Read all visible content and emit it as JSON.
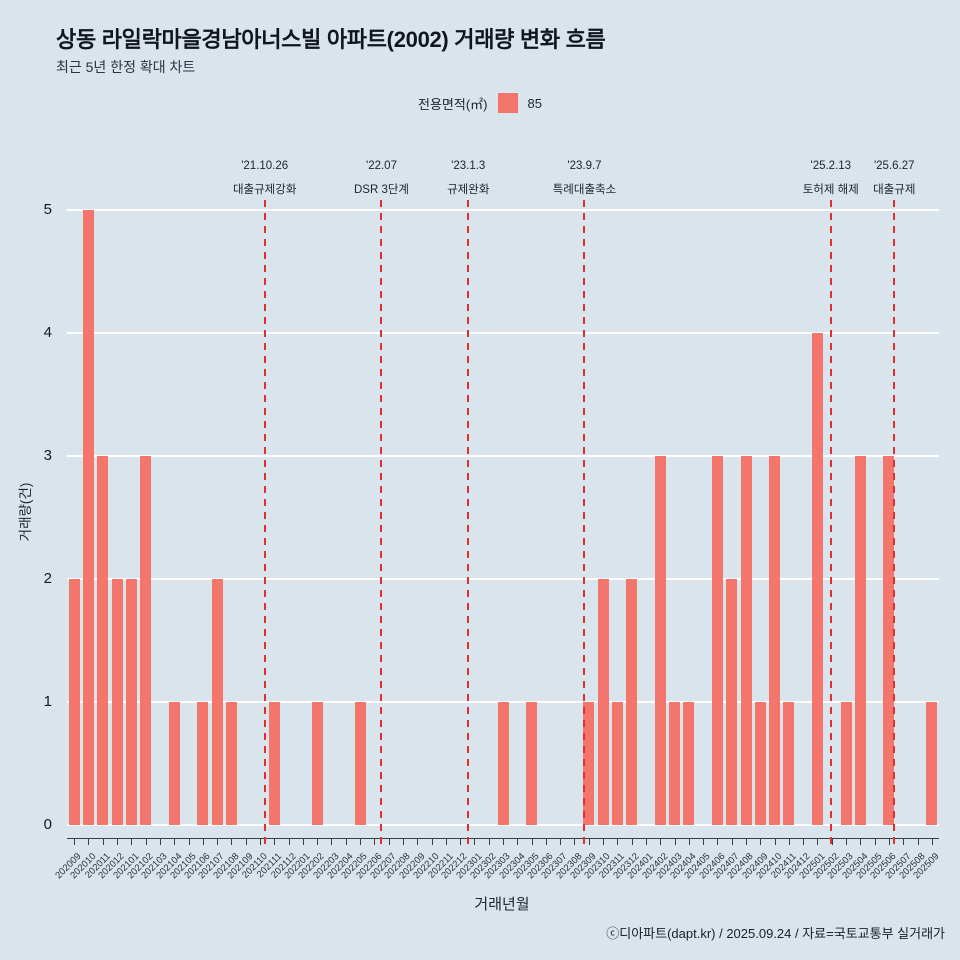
{
  "page": {
    "title": "상동 라일락마을경남아너스빌 아파트(2002) 거래량 변화 흐름",
    "subtitle": "최근 5년 한정 확대 차트",
    "footer": "ⓒ디아파트(dapt.kr) / 2025.09.24 / 자료=국토교통부 실거래가"
  },
  "legend": {
    "label": "전용면적(㎡)",
    "value": "85",
    "swatch_color": "#f4756c"
  },
  "chart_data": {
    "type": "bar",
    "title": "상동 라일락마을경남아너스빌 아파트(2002) 거래량 변화 흐름",
    "subtitle": "최근 5년 한정 확대 차트",
    "xlabel": "거래년월",
    "ylabel": "거래량(건)",
    "ylim": [
      0,
      5
    ],
    "yticks": [
      0,
      1,
      2,
      3,
      4,
      5
    ],
    "grid": "horizontal-white",
    "legend_position": "top-center",
    "bar_color": "#f4756c",
    "background_color": "#d9e4ec",
    "event_line_color": "#e12f2f",
    "series_name": "85",
    "categories": [
      "202009",
      "202010",
      "202011",
      "202012",
      "202101",
      "202102",
      "202103",
      "202104",
      "202105",
      "202106",
      "202107",
      "202108",
      "202109",
      "202110",
      "202111",
      "202112",
      "202201",
      "202202",
      "202203",
      "202204",
      "202205",
      "202206",
      "202207",
      "202208",
      "202209",
      "202210",
      "202211",
      "202212",
      "202301",
      "202302",
      "202303",
      "202304",
      "202305",
      "202306",
      "202307",
      "202308",
      "202309",
      "202310",
      "202311",
      "202312",
      "202401",
      "202402",
      "202403",
      "202404",
      "202405",
      "202406",
      "202407",
      "202408",
      "202409",
      "202410",
      "202411",
      "202412",
      "202501",
      "202502",
      "202503",
      "202504",
      "202505",
      "202506",
      "202507",
      "202508",
      "202509"
    ],
    "values": [
      2,
      5,
      3,
      2,
      2,
      3,
      0,
      1,
      0,
      1,
      2,
      1,
      0,
      0,
      1,
      0,
      0,
      1,
      0,
      0,
      1,
      0,
      0,
      0,
      0,
      0,
      0,
      0,
      0,
      0,
      1,
      0,
      1,
      0,
      0,
      0,
      1,
      2,
      1,
      2,
      0,
      3,
      1,
      1,
      0,
      3,
      2,
      3,
      1,
      3,
      1,
      0,
      4,
      0,
      1,
      3,
      0,
      3,
      0,
      0,
      1
    ],
    "events": [
      {
        "date": "'21.10.26",
        "label": "대출규제강화",
        "x_index": 13.83
      },
      {
        "date": "'22.07",
        "label": "DSR 3단계",
        "x_index": 22.0
      },
      {
        "date": "'23.1.3",
        "label": "규제완화",
        "x_index": 28.07
      },
      {
        "date": "'23.9.7",
        "label": "특례대출축소",
        "x_index": 36.2
      },
      {
        "date": "'25.2.13",
        "label": "토허제 해제",
        "x_index": 53.43
      },
      {
        "date": "'25.6.27",
        "label": "대출규제",
        "x_index": 57.87
      }
    ]
  }
}
